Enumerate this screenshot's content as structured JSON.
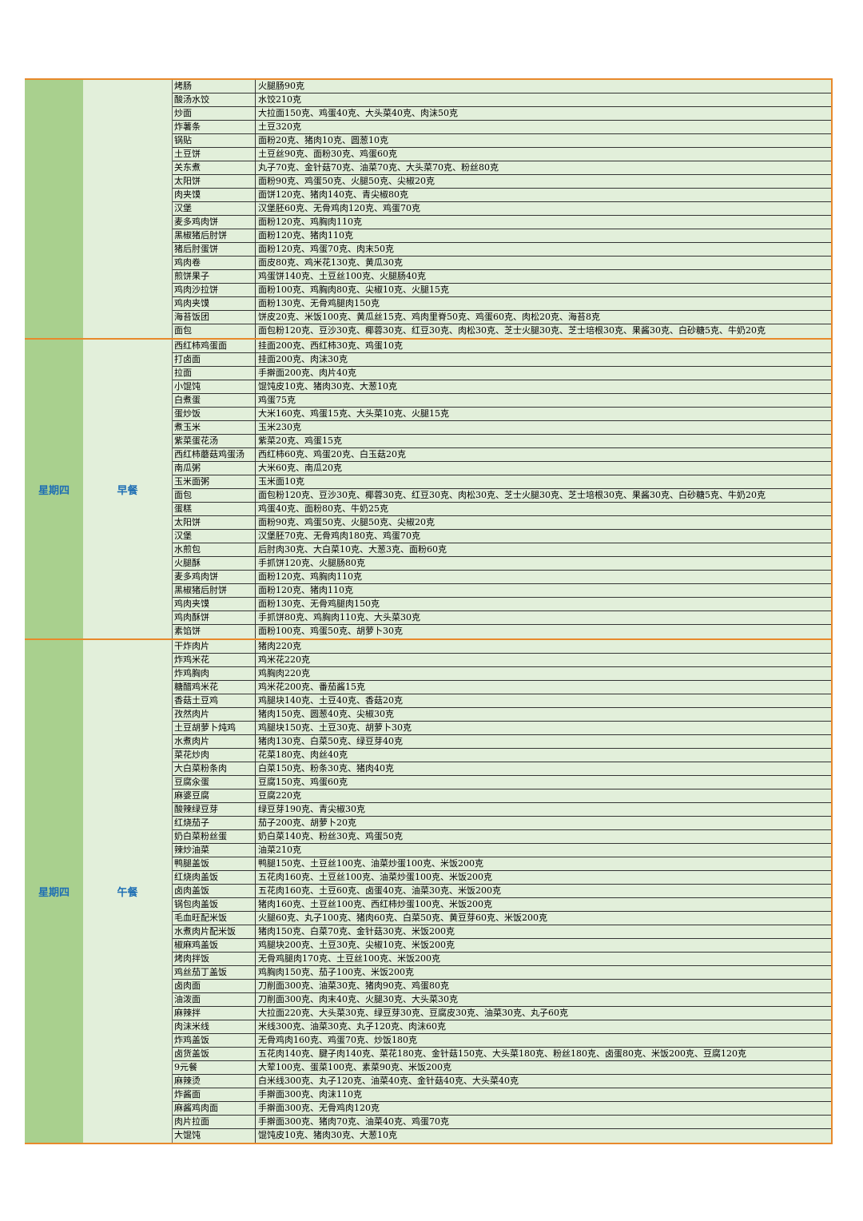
{
  "sections": [
    {
      "rows": [
        [
          "烤肠",
          "火腿肠90克"
        ],
        [
          "酸汤水饺",
          "水饺210克"
        ],
        [
          "炒面",
          "大拉面150克、鸡蛋40克、大头菜40克、肉沫50克"
        ],
        [
          "炸薯条",
          "土豆320克"
        ],
        [
          "锅贴",
          "面粉20克、猪肉10克、圆葱10克"
        ],
        [
          "土豆饼",
          "土豆丝90克、面粉30克、鸡蛋60克"
        ],
        [
          "关东煮",
          "丸子70克、金针菇70克、油菜70克、大头菜70克、粉丝80克"
        ],
        [
          "太阳饼",
          "面粉90克、鸡蛋50克、火腿50克、尖椒20克"
        ],
        [
          "肉夹馍",
          "面饼120克、猪肉140克、青尖椒80克"
        ],
        [
          "汉堡",
          "汉堡胚60克、无骨鸡肉120克、鸡蛋70克"
        ],
        [
          "麦多鸡肉饼",
          "面粉120克、鸡胸肉110克"
        ],
        [
          "黑椒猪后肘饼",
          "面粉120克、猪肉110克"
        ],
        [
          "猪后肘蛋饼",
          "面粉120克、鸡蛋70克、肉末50克"
        ],
        [
          "鸡肉卷",
          "面皮80克、鸡米花130克、黄瓜30克"
        ],
        [
          "煎饼果子",
          "鸡蛋饼140克、土豆丝100克、火腿肠40克"
        ],
        [
          "鸡肉沙拉饼",
          "面粉100克、鸡胸肉80克、尖椒10克、火腿15克"
        ],
        [
          "鸡肉夹馍",
          "面粉130克、无骨鸡腿肉150克"
        ],
        [
          "海苔饭团",
          "饼皮20克、米饭100克、黄瓜丝15克、鸡肉里脊50克、鸡蛋60克、肉松20克、海苔8克"
        ],
        [
          "面包",
          "面包粉120克、豆沙30克、椰蓉30克、红豆30克、肉松30克、芝士火腿30克、芝士培根30克、果酱30克、白砂糖5克、牛奶20克"
        ]
      ]
    },
    {
      "day": "星期四",
      "meal": "早餐",
      "rows": [
        [
          "西红柿鸡蛋面",
          "挂面200克、西红柿30克、鸡蛋10克"
        ],
        [
          "打卤面",
          "挂面200克、肉沫30克"
        ],
        [
          "拉面",
          "手擀面200克、肉片40克"
        ],
        [
          "小馄饨",
          "馄饨皮10克、猪肉30克、大葱10克"
        ],
        [
          "白煮蛋",
          "鸡蛋75克"
        ],
        [
          "蛋炒饭",
          "大米160克、鸡蛋15克、大头菜10克、火腿15克"
        ],
        [
          "煮玉米",
          "玉米230克"
        ],
        [
          "紫菜蛋花汤",
          "紫菜20克、鸡蛋15克"
        ],
        [
          "西红柿蘑菇鸡蛋汤",
          "西红柿60克、鸡蛋20克、白玉菇20克"
        ],
        [
          "南瓜粥",
          "大米60克、南瓜20克"
        ],
        [
          "玉米面粥",
          "玉米面10克"
        ],
        [
          "面包",
          "面包粉120克、豆沙30克、椰蓉30克、红豆30克、肉松30克、芝士火腿30克、芝士培根30克、果酱30克、白砂糖5克、牛奶20克"
        ],
        [
          "蛋糕",
          "鸡蛋40克、面粉80克、牛奶25克"
        ],
        [
          "太阳饼",
          "面粉90克、鸡蛋50克、火腿50克、尖椒20克"
        ],
        [
          "汉堡",
          "汉堡胚70克、无骨鸡肉180克、鸡蛋70克"
        ],
        [
          "水煎包",
          "后肘肉30克、大白菜10克、大葱3克、面粉60克"
        ],
        [
          "火腿酥",
          "手抓饼120克、火腿肠80克"
        ],
        [
          "麦多鸡肉饼",
          "面粉120克、鸡胸肉110克"
        ],
        [
          "黑椒猪后肘饼",
          "面粉120克、猪肉110克"
        ],
        [
          "鸡肉夹馍",
          "面粉130克、无骨鸡腿肉150克"
        ],
        [
          "鸡肉酥饼",
          "手抓饼80克、鸡胸肉110克、大头菜30克"
        ],
        [
          "素馅饼",
          "面粉100克、鸡蛋50克、胡萝卜30克"
        ]
      ]
    },
    {
      "day": "星期四",
      "meal": "午餐",
      "rows": [
        [
          "干炸肉片",
          "猪肉220克"
        ],
        [
          "炸鸡米花",
          "鸡米花220克"
        ],
        [
          "炸鸡胸肉",
          "鸡胸肉220克"
        ],
        [
          "糖醋鸡米花",
          "鸡米花200克、番茄酱15克"
        ],
        [
          "香菇土豆鸡",
          "鸡腿块140克、土豆40克、香菇20克"
        ],
        [
          "孜然肉片",
          "猪肉150克、圆葱40克、尖椒30克"
        ],
        [
          "土豆胡萝卜炖鸡",
          "鸡腿块150克、土豆30克、胡萝卜30克"
        ],
        [
          "水煮肉片",
          "猪肉130克、白菜50克、绿豆芽40克"
        ],
        [
          "菜花炒肉",
          "花菜180克、肉丝40克"
        ],
        [
          "大白菜粉条肉",
          "白菜150克、粉条30克、猪肉40克"
        ],
        [
          "豆腐汆蛋",
          "豆腐150克、鸡蛋60克"
        ],
        [
          "麻婆豆腐",
          "豆腐220克"
        ],
        [
          "酸辣绿豆芽",
          "绿豆芽190克、青尖椒30克"
        ],
        [
          "红烧茄子",
          "茄子200克、胡萝卜20克"
        ],
        [
          "奶白菜粉丝蛋",
          "奶白菜140克、粉丝30克、鸡蛋50克"
        ],
        [
          "辣炒油菜",
          "油菜210克"
        ],
        [
          "鸭腿盖饭",
          "鸭腿150克、土豆丝100克、油菜炒蛋100克、米饭200克"
        ],
        [
          "红烧肉盖饭",
          "五花肉160克、土豆丝100克、油菜炒蛋100克、米饭200克"
        ],
        [
          "卤肉盖饭",
          "五花肉160克、土豆60克、卤蛋40克、油菜30克、米饭200克"
        ],
        [
          "锅包肉盖饭",
          "猪肉160克、土豆丝100克、西红柿炒蛋100克、米饭200克"
        ],
        [
          "毛血旺配米饭",
          "火腿60克、丸子100克、猪肉60克、白菜50克、黄豆芽60克、米饭200克"
        ],
        [
          "水煮肉片配米饭",
          "猪肉150克、白菜70克、金针菇30克、米饭200克"
        ],
        [
          "椒麻鸡盖饭",
          "鸡腿块200克、土豆30克、尖椒10克、米饭200克"
        ],
        [
          "烤肉拌饭",
          "无骨鸡腿肉170克、土豆丝100克、米饭200克"
        ],
        [
          "鸡丝茄丁盖饭",
          "鸡胸肉150克、茄子100克、米饭200克"
        ],
        [
          "卤肉面",
          "刀削面300克、油菜30克、猪肉90克、鸡蛋80克"
        ],
        [
          "油泼面",
          "刀削面300克、肉末40克、火腿30克、大头菜30克"
        ],
        [
          "麻辣拌",
          "大拉面220克、大头菜30克、绿豆芽30克、豆腐皮30克、油菜30克、丸子60克"
        ],
        [
          "肉沫米线",
          "米线300克、油菜30克、丸子120克、肉沫60克"
        ],
        [
          "炸鸡盖饭",
          "无骨鸡肉160克、鸡蛋70克、炒饭180克"
        ],
        [
          "卤货盖饭",
          "五花肉140克、腱子肉140克、菜花180克、金针菇150克、大头菜180克、粉丝180克、卤蛋80克、米饭200克、豆腐120克"
        ],
        [
          "9元餐",
          "大荤100克、蛋菜100克、素菜90克、米饭200克"
        ],
        [
          "麻辣烫",
          "白米线300克、丸子120克、油菜40克、金针菇40克、大头菜40克"
        ],
        [
          "炸酱面",
          "手擀面300克、肉沫110克"
        ],
        [
          "麻酱鸡肉面",
          "手擀面300克、无骨鸡肉120克"
        ],
        [
          "肉片拉面",
          "手擀面300克、猪肉70克、油菜40克、鸡蛋70克"
        ],
        [
          "大馄饨",
          "馄饨皮10克、猪肉30克、大葱10克"
        ]
      ]
    }
  ]
}
